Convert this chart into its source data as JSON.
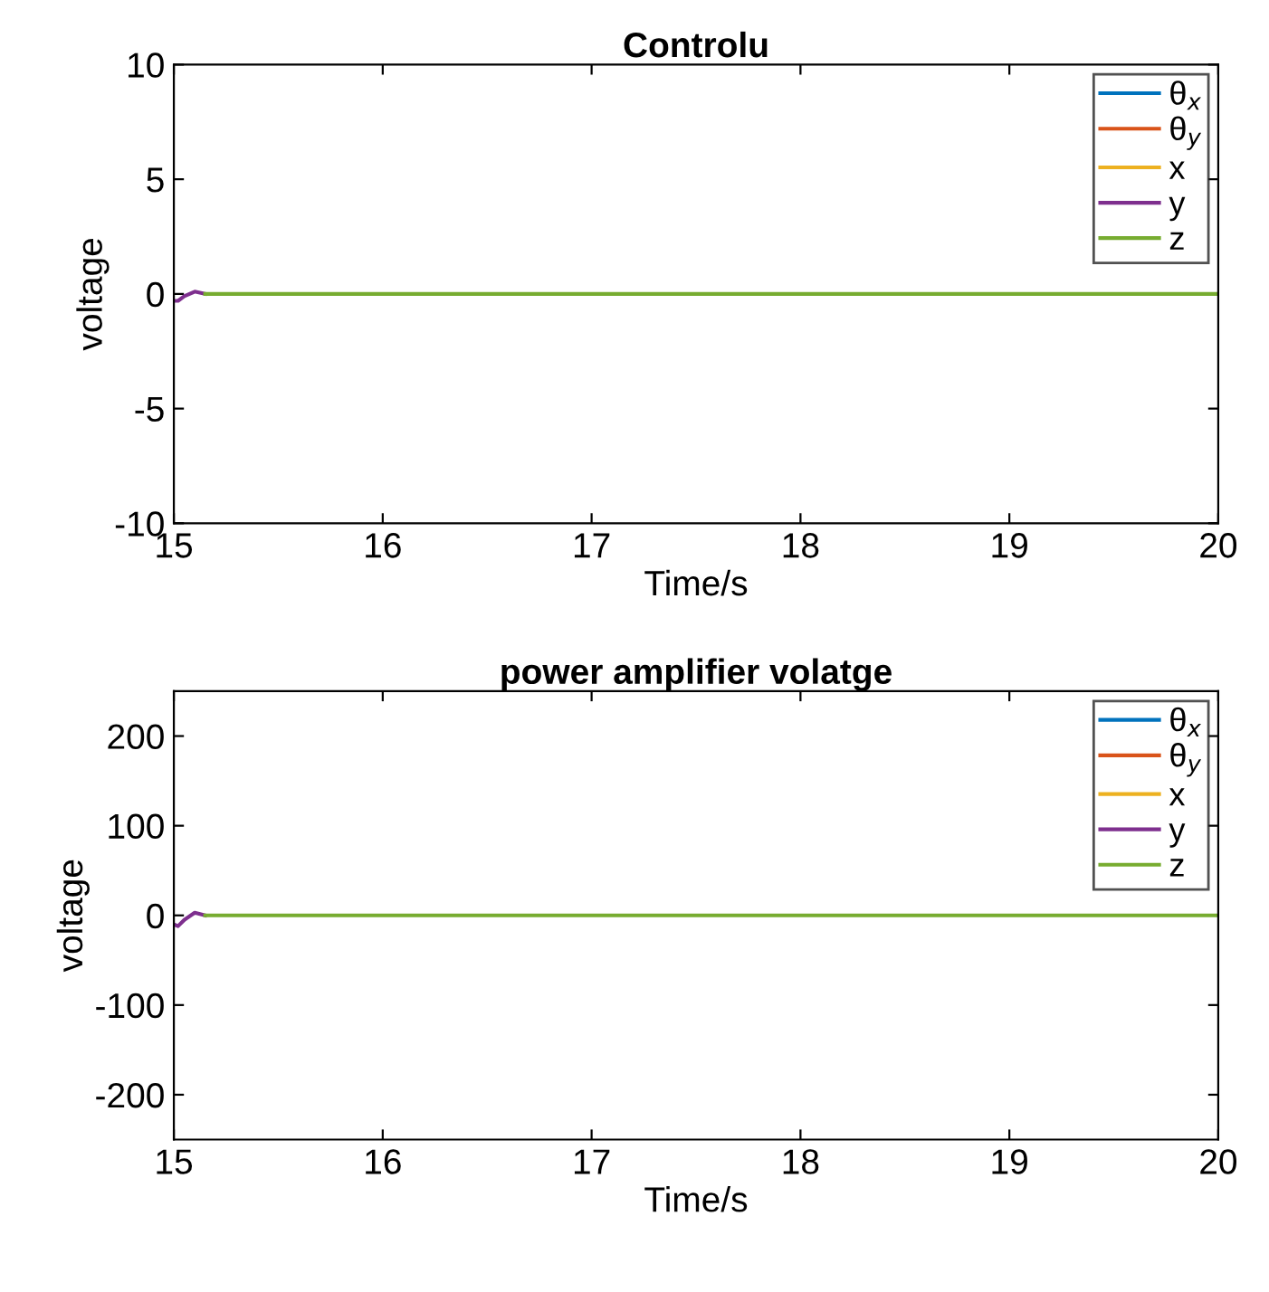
{
  "chart_data": [
    {
      "type": "line",
      "title": "Controlu",
      "xlabel": "Time/s",
      "ylabel": "voltage",
      "xlim": [
        15,
        20
      ],
      "xticks": [
        15,
        16,
        17,
        18,
        19,
        20
      ],
      "ylim": [
        -10,
        10
      ],
      "yticks": [
        -10,
        -5,
        0,
        5,
        10
      ],
      "legend": "top right",
      "grid": false,
      "line_style": "solid",
      "x": [
        15,
        15.02,
        15.05,
        15.1,
        15.15,
        16,
        17,
        18,
        19,
        20
      ],
      "series": [
        {
          "name": "θ$_{x}$",
          "color": "#0072bd",
          "values": [
            null,
            null,
            null,
            null,
            null,
            null,
            null,
            null,
            null,
            null
          ]
        },
        {
          "name": "θ$_{y}$",
          "color": "#d95319",
          "values": [
            null,
            null,
            null,
            null,
            null,
            null,
            null,
            null,
            null,
            null
          ]
        },
        {
          "name": "x",
          "color": "#edb120",
          "values": [
            null,
            null,
            null,
            null,
            null,
            null,
            null,
            null,
            null,
            null
          ]
        },
        {
          "name": "y",
          "color": "#7e2f8e",
          "values": [
            -0.3,
            -0.3,
            -0.1,
            0.1,
            0,
            null,
            null,
            null,
            null,
            null
          ]
        },
        {
          "name": "z",
          "color": "#77ac30",
          "values": [
            null,
            null,
            null,
            null,
            0,
            0,
            0,
            0,
            0,
            0
          ]
        }
      ]
    },
    {
      "type": "line",
      "title": "power amplifier volatge",
      "xlabel": "Time/s",
      "ylabel": "voltage",
      "xlim": [
        15,
        20
      ],
      "xticks": [
        15,
        16,
        17,
        18,
        19,
        20
      ],
      "ylim": [
        -250,
        250
      ],
      "yticks": [
        -200,
        -100,
        0,
        100,
        200
      ],
      "legend": "top right",
      "grid": false,
      "line_style": "solid",
      "x": [
        15,
        15.02,
        15.05,
        15.1,
        15.15,
        16,
        17,
        18,
        19,
        20
      ],
      "series": [
        {
          "name": "θ$_{x}$",
          "color": "#0072bd",
          "values": [
            null,
            null,
            null,
            null,
            null,
            null,
            null,
            null,
            null,
            null
          ]
        },
        {
          "name": "θ$_{y}$",
          "color": "#d95319",
          "values": [
            null,
            null,
            null,
            null,
            null,
            null,
            null,
            null,
            null,
            null
          ]
        },
        {
          "name": "x",
          "color": "#edb120",
          "values": [
            null,
            null,
            null,
            null,
            null,
            null,
            null,
            null,
            null,
            null
          ]
        },
        {
          "name": "y",
          "color": "#7e2f8e",
          "values": [
            -10,
            -12,
            -5,
            3,
            0,
            null,
            null,
            null,
            null,
            null
          ]
        },
        {
          "name": "z",
          "color": "#77ac30",
          "values": [
            null,
            null,
            null,
            null,
            0,
            0,
            0,
            0,
            0,
            0
          ]
        }
      ]
    }
  ]
}
